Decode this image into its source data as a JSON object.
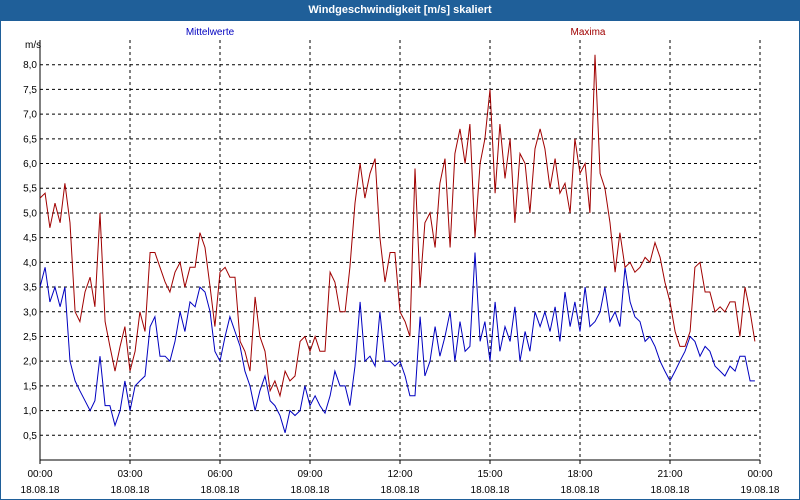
{
  "window": {
    "title": "Windgeschwindigkeit [m/s] skaliert"
  },
  "chart_data": {
    "type": "line",
    "title": "Windgeschwindigkeit [m/s] skaliert",
    "ylabel": "m/s",
    "ylim": [
      0,
      8.5
    ],
    "y_ticks": [
      "0,5",
      "1,0",
      "1,5",
      "2,0",
      "2,5",
      "3,0",
      "3,5",
      "4,0",
      "4,5",
      "5,0",
      "5,5",
      "6,0",
      "6,5",
      "7,0",
      "7,5",
      "8,0"
    ],
    "x_ticks": [
      {
        "time": "00:00",
        "date": "18.08.18"
      },
      {
        "time": "03:00",
        "date": "18.08.18"
      },
      {
        "time": "06:00",
        "date": "18.08.18"
      },
      {
        "time": "09:00",
        "date": "18.08.18"
      },
      {
        "time": "12:00",
        "date": "18.08.18"
      },
      {
        "time": "15:00",
        "date": "18.08.18"
      },
      {
        "time": "18:00",
        "date": "18.08.18"
      },
      {
        "time": "21:00",
        "date": "18.08.18"
      },
      {
        "time": "00:00",
        "date": "19.08.18"
      }
    ],
    "grid": true,
    "xunit_hours": 24,
    "series": [
      {
        "name": "Mittelwerte",
        "color": "#0000c0",
        "x": [
          0,
          0.17,
          0.33,
          0.5,
          0.67,
          0.83,
          1.0,
          1.17,
          1.33,
          1.5,
          1.67,
          1.83,
          2.0,
          2.17,
          2.33,
          2.5,
          2.67,
          2.83,
          3.0,
          3.17,
          3.33,
          3.5,
          3.67,
          3.83,
          4.0,
          4.17,
          4.33,
          4.5,
          4.67,
          4.83,
          5.0,
          5.17,
          5.33,
          5.5,
          5.67,
          5.83,
          6.0,
          6.17,
          6.33,
          6.5,
          6.67,
          6.83,
          7.0,
          7.17,
          7.33,
          7.5,
          7.67,
          7.83,
          8.0,
          8.17,
          8.33,
          8.5,
          8.67,
          8.83,
          9.0,
          9.17,
          9.33,
          9.5,
          9.67,
          9.83,
          10.0,
          10.17,
          10.33,
          10.5,
          10.67,
          10.83,
          11.0,
          11.17,
          11.33,
          11.5,
          11.67,
          11.83,
          12.0,
          12.17,
          12.33,
          12.5,
          12.67,
          12.83,
          13.0,
          13.17,
          13.33,
          13.5,
          13.67,
          13.83,
          14.0,
          14.17,
          14.33,
          14.5,
          14.67,
          14.83,
          15.0,
          15.17,
          15.33,
          15.5,
          15.67,
          15.83,
          16.0,
          16.17,
          16.33,
          16.5,
          16.67,
          16.83,
          17.0,
          17.17,
          17.33,
          17.5,
          17.67,
          17.83,
          18.0,
          18.17,
          18.33,
          18.5,
          18.67,
          18.83,
          19.0,
          19.17,
          19.33,
          19.5,
          19.67,
          19.83,
          20.0,
          20.17,
          20.33,
          20.5,
          20.67,
          20.83,
          21.0,
          21.17,
          21.33,
          21.5,
          21.67,
          21.83,
          22.0,
          22.17,
          22.33,
          22.5,
          22.67,
          22.83,
          23.0,
          23.17,
          23.33,
          23.5,
          23.67,
          23.83
        ],
        "values": [
          3.5,
          3.9,
          3.2,
          3.5,
          3.1,
          3.5,
          2.0,
          1.6,
          1.4,
          1.2,
          1.0,
          1.2,
          2.1,
          1.1,
          1.1,
          0.7,
          1.0,
          1.6,
          1.0,
          1.5,
          1.6,
          1.7,
          2.7,
          2.9,
          2.1,
          2.1,
          2.0,
          2.4,
          3.0,
          2.6,
          3.2,
          3.1,
          3.5,
          3.4,
          3.0,
          2.2,
          2.0,
          2.5,
          2.9,
          2.6,
          2.3,
          1.8,
          1.5,
          1.0,
          1.4,
          1.7,
          1.2,
          1.1,
          0.9,
          0.55,
          1.0,
          0.9,
          1.0,
          1.5,
          1.1,
          1.3,
          1.1,
          0.95,
          1.3,
          1.8,
          1.5,
          1.5,
          1.1,
          1.9,
          3.2,
          2.0,
          2.1,
          1.9,
          3.0,
          2.0,
          2.0,
          1.9,
          2.0,
          1.7,
          1.3,
          1.3,
          2.9,
          1.7,
          2.0,
          2.7,
          2.1,
          2.5,
          3.0,
          2.0,
          2.8,
          2.2,
          2.3,
          4.2,
          2.4,
          2.8,
          2.0,
          3.2,
          2.2,
          2.7,
          2.4,
          3.1,
          2.0,
          2.6,
          2.2,
          3.0,
          2.7,
          3.0,
          2.6,
          3.1,
          2.4,
          3.4,
          2.7,
          3.2,
          2.6,
          3.5,
          2.7,
          2.8,
          3.0,
          3.5,
          2.8,
          3.0,
          2.7,
          3.9,
          3.2,
          2.9,
          2.8,
          2.4,
          2.5,
          2.3,
          2.0,
          1.8,
          1.6,
          1.8,
          2.0,
          2.2,
          2.5,
          2.4,
          2.1,
          2.3,
          2.2,
          1.9,
          1.8,
          1.7,
          1.9,
          1.8,
          2.1,
          2.1,
          1.6,
          1.6
        ],
        "label": "Mittelwerte"
      },
      {
        "name": "Maxima",
        "color": "#a00000",
        "x": [
          0,
          0.17,
          0.33,
          0.5,
          0.67,
          0.83,
          1.0,
          1.17,
          1.33,
          1.5,
          1.67,
          1.83,
          2.0,
          2.17,
          2.33,
          2.5,
          2.67,
          2.83,
          3.0,
          3.17,
          3.33,
          3.5,
          3.67,
          3.83,
          4.0,
          4.17,
          4.33,
          4.5,
          4.67,
          4.83,
          5.0,
          5.17,
          5.33,
          5.5,
          5.67,
          5.83,
          6.0,
          6.17,
          6.33,
          6.5,
          6.67,
          6.83,
          7.0,
          7.17,
          7.33,
          7.5,
          7.67,
          7.83,
          8.0,
          8.17,
          8.33,
          8.5,
          8.67,
          8.83,
          9.0,
          9.17,
          9.33,
          9.5,
          9.67,
          9.83,
          10.0,
          10.17,
          10.33,
          10.5,
          10.67,
          10.83,
          11.0,
          11.17,
          11.33,
          11.5,
          11.67,
          11.83,
          12.0,
          12.17,
          12.33,
          12.5,
          12.67,
          12.83,
          13.0,
          13.17,
          13.33,
          13.5,
          13.67,
          13.83,
          14.0,
          14.17,
          14.33,
          14.5,
          14.67,
          14.83,
          15.0,
          15.17,
          15.33,
          15.5,
          15.67,
          15.83,
          16.0,
          16.17,
          16.33,
          16.5,
          16.67,
          16.83,
          17.0,
          17.17,
          17.33,
          17.5,
          17.67,
          17.83,
          18.0,
          18.17,
          18.33,
          18.5,
          18.67,
          18.83,
          19.0,
          19.17,
          19.33,
          19.5,
          19.67,
          19.83,
          20.0,
          20.17,
          20.33,
          20.5,
          20.67,
          20.83,
          21.0,
          21.17,
          21.33,
          21.5,
          21.67,
          21.83,
          22.0,
          22.17,
          22.33,
          22.5,
          22.67,
          22.83,
          23.0,
          23.17,
          23.33,
          23.5,
          23.67,
          23.83
        ],
        "values": [
          5.3,
          5.4,
          4.7,
          5.2,
          4.8,
          5.6,
          4.8,
          3.0,
          2.8,
          3.4,
          3.7,
          3.1,
          5.0,
          2.8,
          2.3,
          1.8,
          2.3,
          2.7,
          1.8,
          2.2,
          3.0,
          2.6,
          4.2,
          4.2,
          3.9,
          3.6,
          3.4,
          3.8,
          4.0,
          3.5,
          3.9,
          3.9,
          4.6,
          4.3,
          3.5,
          2.7,
          3.8,
          3.9,
          3.7,
          3.7,
          2.4,
          2.2,
          1.8,
          3.3,
          2.5,
          2.2,
          1.4,
          1.6,
          1.3,
          1.8,
          1.6,
          1.7,
          2.4,
          2.5,
          2.2,
          2.5,
          2.2,
          2.2,
          3.8,
          3.6,
          3.0,
          3.0,
          3.9,
          5.2,
          6.0,
          5.3,
          5.8,
          6.1,
          4.5,
          3.6,
          4.2,
          4.2,
          3.0,
          2.8,
          2.5,
          5.9,
          3.5,
          4.8,
          5.0,
          4.3,
          5.6,
          6.1,
          4.3,
          6.2,
          6.7,
          6.0,
          6.8,
          4.5,
          6.0,
          6.5,
          7.5,
          5.4,
          6.8,
          5.7,
          6.5,
          4.8,
          6.2,
          6.0,
          5.0,
          6.3,
          6.7,
          6.3,
          5.5,
          6.1,
          5.4,
          5.6,
          5.0,
          6.5,
          5.8,
          6.0,
          5.0,
          8.2,
          5.8,
          5.5,
          4.8,
          3.8,
          4.6,
          3.9,
          4.0,
          3.8,
          3.9,
          4.1,
          4.0,
          4.4,
          4.1,
          3.6,
          3.2,
          2.6,
          2.3,
          2.3,
          2.6,
          3.9,
          4.0,
          3.4,
          3.4,
          3.0,
          3.1,
          3.0,
          3.2,
          3.2,
          2.5,
          3.5,
          3.0,
          2.4
        ],
        "label": "Maxima"
      }
    ]
  }
}
